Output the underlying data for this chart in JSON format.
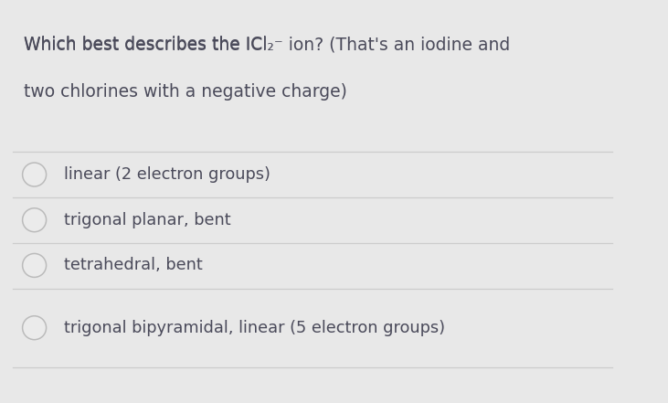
{
  "background_color": "#e8e8e8",
  "panel_color": "#ffffff",
  "text_color": "#4a4a5a",
  "line_color": "#cccccc",
  "circle_edge_color": "#bbbbbb",
  "circle_face_color": "#ebebeb",
  "title_part1": "Which best describes the ICl",
  "title_sub": "2",
  "title_sup": "−",
  "title_part2": " ion? (That's an iodine and",
  "title_line2": "two chlorines with a negative charge)",
  "options": [
    "linear (2 electron groups)",
    "trigonal planar, bent",
    "tetrahedral, bent",
    "trigonal bipyramidal, linear (5 electron groups)"
  ],
  "title_fontsize": 13.5,
  "option_fontsize": 12.8,
  "fig_width": 7.31,
  "fig_height": 4.41,
  "dpi": 100
}
